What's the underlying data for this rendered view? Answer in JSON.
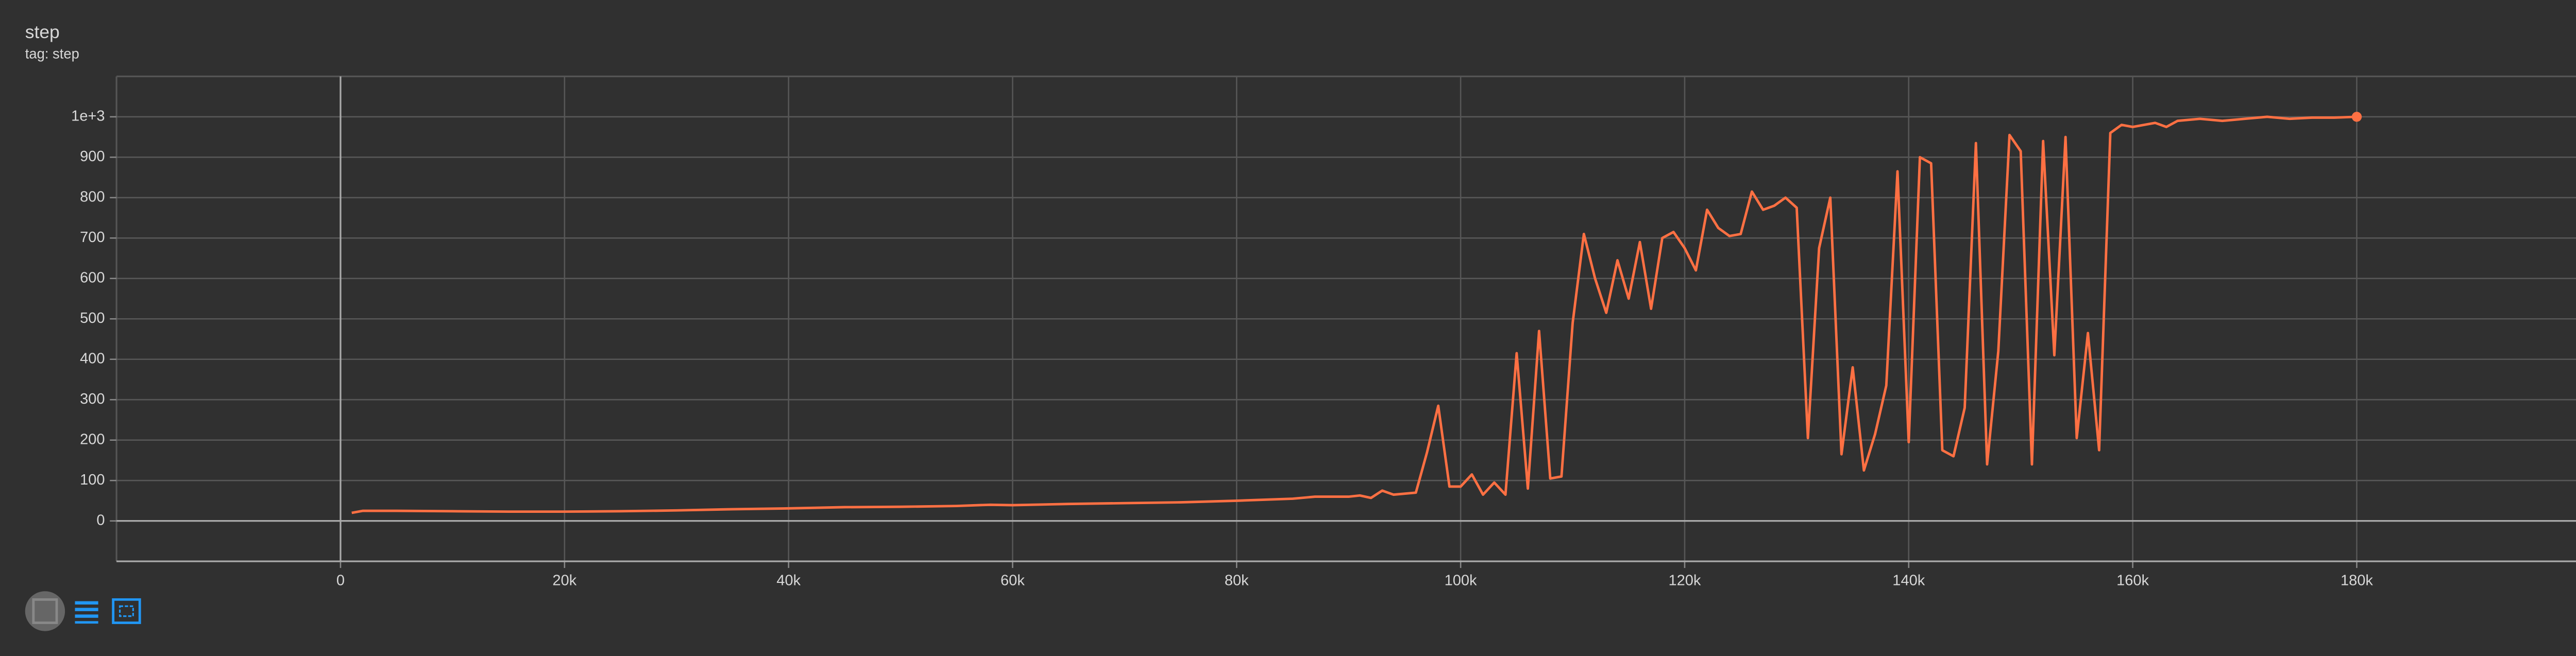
{
  "chart_data": {
    "type": "line",
    "title": "step",
    "subtitle": "tag: step",
    "x": [
      1000,
      2000,
      5000,
      10000,
      15000,
      20000,
      25000,
      30000,
      35000,
      40000,
      45000,
      50000,
      55000,
      58000,
      60000,
      65000,
      70000,
      75000,
      80000,
      85000,
      87000,
      90000,
      91000,
      92000,
      93000,
      94000,
      96000,
      97000,
      98000,
      99000,
      100000,
      101000,
      102000,
      103000,
      104000,
      105000,
      106000,
      107000,
      108000,
      109000,
      110000,
      111000,
      112000,
      113000,
      114000,
      115000,
      116000,
      117000,
      118000,
      119000,
      120000,
      121000,
      122000,
      123000,
      124000,
      125000,
      126000,
      127000,
      128000,
      129000,
      130000,
      131000,
      132000,
      133000,
      134000,
      135000,
      136000,
      137000,
      138000,
      139000,
      140000,
      141000,
      142000,
      143000,
      144000,
      145000,
      146000,
      147000,
      148000,
      149000,
      150000,
      151000,
      152000,
      153000,
      154000,
      155000,
      156000,
      157000,
      158000,
      159000,
      160000,
      162000,
      163000,
      164000,
      166000,
      168000,
      170000,
      172000,
      174000,
      176000,
      178000,
      180000
    ],
    "series": [
      {
        "name": "step",
        "color": "#ff7043",
        "values": [
          20,
          25,
          25,
          24,
          23,
          23,
          24,
          26,
          29,
          31,
          34,
          35,
          37,
          40,
          39,
          42,
          44,
          46,
          50,
          55,
          60,
          60,
          63,
          57,
          75,
          65,
          70,
          170,
          285,
          85,
          85,
          115,
          65,
          95,
          65,
          415,
          80,
          470,
          105,
          110,
          490,
          710,
          600,
          515,
          645,
          550,
          690,
          525,
          700,
          715,
          675,
          620,
          770,
          725,
          705,
          710,
          815,
          770,
          780,
          800,
          775,
          205,
          675,
          800,
          165,
          380,
          125,
          215,
          335,
          865,
          195,
          900,
          885,
          175,
          160,
          280,
          935,
          140,
          420,
          955,
          915,
          140,
          940,
          410,
          950,
          205,
          465,
          175,
          960,
          980,
          975,
          985,
          975,
          990,
          995,
          990,
          995,
          1000,
          995,
          998,
          998,
          1000
        ]
      }
    ],
    "xlim": [
      -20000,
      200000
    ],
    "xticks": [
      0,
      {
        "value": 20000,
        "label": "20k"
      },
      {
        "value": 40000,
        "label": "40k"
      },
      {
        "value": 60000,
        "label": "60k"
      },
      {
        "value": 80000,
        "label": "80k"
      },
      {
        "value": 100000,
        "label": "100k"
      },
      {
        "value": 120000,
        "label": "120k"
      },
      {
        "value": 140000,
        "label": "140k"
      },
      {
        "value": 160000,
        "label": "160k"
      },
      {
        "value": 180000,
        "label": "180k"
      }
    ],
    "ylim": [
      -100,
      1100
    ],
    "yticks": [
      0,
      100,
      200,
      300,
      400,
      500,
      600,
      700,
      800,
      900,
      {
        "value": 1000,
        "label": "1e+3"
      }
    ],
    "grid": true
  }
}
